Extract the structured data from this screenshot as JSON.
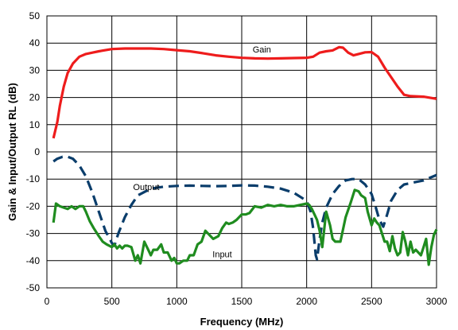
{
  "chart_data": {
    "type": "line",
    "xlabel": "Frequency (MHz)",
    "ylabel": "Gain & Input/Output RL (dB)",
    "xlim": [
      0,
      3000
    ],
    "ylim": [
      -50,
      50
    ],
    "xticks": [
      0,
      500,
      1000,
      1500,
      2000,
      2500,
      3000
    ],
    "yticks": [
      -50,
      -40,
      -30,
      -20,
      -10,
      0,
      10,
      20,
      30,
      40,
      50
    ],
    "grid": true,
    "legend": "none",
    "annotations": [
      {
        "text": "Gain",
        "series": "gain"
      },
      {
        "text": "Output",
        "series": "output"
      },
      {
        "text": "Input",
        "series": "input"
      }
    ],
    "series": [
      {
        "key": "gain",
        "color": "#ee1c1c",
        "style": "solid",
        "x": [
          50,
          80,
          100,
          130,
          160,
          200,
          250,
          300,
          350,
          400,
          500,
          600,
          700,
          800,
          900,
          1000,
          1100,
          1200,
          1300,
          1400,
          1500,
          1600,
          1700,
          1800,
          1900,
          2000,
          2050,
          2100,
          2150,
          2200,
          2250,
          2280,
          2320,
          2360,
          2400,
          2450,
          2500,
          2550,
          2600,
          2650,
          2700,
          2750,
          2800,
          2900,
          3000
        ],
        "y": [
          5,
          11,
          17,
          24,
          29,
          32.5,
          35,
          36,
          36.5,
          37,
          37.8,
          38,
          38,
          38,
          37.8,
          37.4,
          37,
          36.3,
          35.5,
          35,
          34.6,
          34.4,
          34.3,
          34.4,
          34.5,
          34.6,
          35,
          36.5,
          37,
          37.3,
          38.5,
          38.3,
          36.5,
          35.5,
          36,
          36.6,
          36.7,
          35,
          31,
          27.5,
          24,
          21,
          20.5,
          20.3,
          19.5
        ]
      },
      {
        "key": "output",
        "color": "#0a3d6b",
        "style": "dashed",
        "x": [
          50,
          80,
          120,
          160,
          200,
          250,
          300,
          350,
          400,
          450,
          500,
          520,
          550,
          600,
          650,
          700,
          800,
          900,
          1000,
          1100,
          1200,
          1300,
          1400,
          1500,
          1600,
          1700,
          1800,
          1900,
          2000,
          2030,
          2050,
          2070,
          2080,
          2100,
          2120,
          2150,
          2200,
          2250,
          2300,
          2350,
          2400,
          2450,
          2500,
          2530,
          2560,
          2590,
          2620,
          2650,
          2700,
          2750,
          2800,
          2850,
          2900,
          2950,
          3000
        ],
        "y": [
          -3.5,
          -2.5,
          -1.8,
          -1.8,
          -2.5,
          -5,
          -9,
          -15,
          -22,
          -29,
          -33.5,
          -34.5,
          -30,
          -24,
          -19.5,
          -16,
          -13.5,
          -12.8,
          -12.5,
          -12.4,
          -12.5,
          -12.6,
          -12.5,
          -12.3,
          -12.4,
          -12.8,
          -13.5,
          -15,
          -18,
          -22,
          -28,
          -38,
          -39.5,
          -32,
          -26,
          -20.5,
          -15.5,
          -12.5,
          -10.5,
          -10,
          -10,
          -12,
          -15.5,
          -20,
          -25,
          -27.5,
          -23,
          -18,
          -14,
          -12,
          -11.5,
          -11,
          -10.5,
          -9.5,
          -8.5
        ]
      },
      {
        "key": "input",
        "color": "#1f8c1f",
        "style": "solid",
        "x": [
          50,
          70,
          100,
          130,
          160,
          190,
          220,
          250,
          280,
          300,
          330,
          360,
          400,
          430,
          460,
          500,
          520,
          540,
          560,
          580,
          600,
          620,
          650,
          680,
          700,
          720,
          750,
          780,
          800,
          820,
          850,
          880,
          900,
          930,
          960,
          980,
          1000,
          1020,
          1050,
          1080,
          1100,
          1130,
          1160,
          1190,
          1220,
          1250,
          1280,
          1320,
          1350,
          1380,
          1400,
          1430,
          1460,
          1500,
          1530,
          1560,
          1600,
          1650,
          1700,
          1750,
          1800,
          1850,
          1900,
          1950,
          2000,
          2020,
          2040,
          2060,
          2080,
          2100,
          2120,
          2150,
          2180,
          2200,
          2220,
          2240,
          2260,
          2300,
          2340,
          2370,
          2400,
          2420,
          2450,
          2470,
          2500,
          2520,
          2540,
          2560,
          2580,
          2600,
          2620,
          2640,
          2660,
          2680,
          2700,
          2720,
          2740,
          2760,
          2780,
          2800,
          2820,
          2840,
          2860,
          2880,
          2900,
          2920,
          2940,
          2960,
          2980,
          3000
        ],
        "y": [
          -26,
          -19,
          -20,
          -20.5,
          -21,
          -20,
          -21,
          -20,
          -20,
          -22,
          -25.5,
          -28,
          -31,
          -33,
          -34,
          -35,
          -34,
          -35.5,
          -34.5,
          -35.5,
          -34.5,
          -34.5,
          -35,
          -40,
          -38,
          -41,
          -33,
          -36,
          -38,
          -36,
          -36,
          -34,
          -37,
          -37,
          -40,
          -39,
          -41,
          -41,
          -40,
          -40,
          -38,
          -38,
          -34,
          -33,
          -29,
          -30.5,
          -32,
          -31,
          -28,
          -26,
          -26.5,
          -26,
          -25,
          -23,
          -23,
          -22.5,
          -20,
          -20.5,
          -19.5,
          -20,
          -19.5,
          -20,
          -20,
          -19.5,
          -19,
          -19.5,
          -21,
          -23,
          -25,
          -29,
          -35,
          -22,
          -27,
          -32,
          -33,
          -33,
          -33,
          -24,
          -18.5,
          -14,
          -14.5,
          -16,
          -17,
          -22,
          -27,
          -24.5,
          -26,
          -27,
          -30,
          -33,
          -33,
          -36.5,
          -31,
          -35.5,
          -38,
          -37,
          -29.5,
          -33,
          -38,
          -33,
          -37,
          -36,
          -37,
          -38,
          -35,
          -32,
          -41.5,
          -35,
          -30.5,
          -28.5
        ]
      }
    ]
  }
}
